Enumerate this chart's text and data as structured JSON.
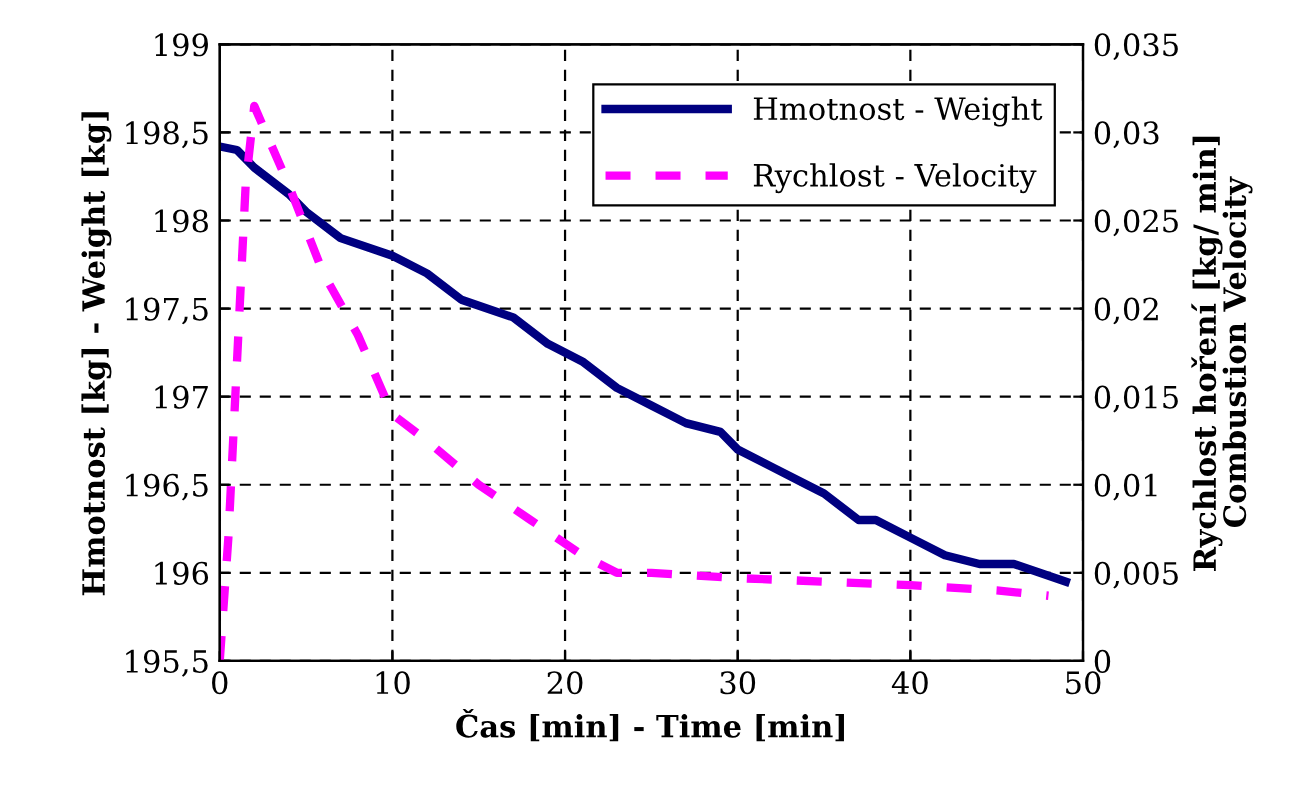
{
  "chart_data": {
    "type": "line",
    "xlabel": "Čas [min] - Time [min]",
    "ylabel": "Hmotnost [kg] - Weight [kg]",
    "y2label": "Rychlost hoření [kg/ min]\nCombustion Velocity",
    "xlim": [
      0,
      50
    ],
    "xticks": [
      0,
      10,
      20,
      30,
      40,
      50
    ],
    "ylim": [
      195.5,
      199
    ],
    "yticks": [
      {
        "value": 195.5,
        "label": "195,5"
      },
      196,
      {
        "value": 196.5,
        "label": "196,5"
      },
      197,
      {
        "value": 197.5,
        "label": "197,5"
      },
      198,
      {
        "value": 198.5,
        "label": "198,5"
      },
      199
    ],
    "y2lim": [
      0,
      0.035
    ],
    "y2ticks": [
      0,
      {
        "value": 0.005,
        "label": "0,005"
      },
      {
        "value": 0.01,
        "label": "0,01"
      },
      {
        "value": 0.015,
        "label": "0,015"
      },
      {
        "value": 0.02,
        "label": "0,02"
      },
      {
        "value": 0.025,
        "label": "0,025"
      },
      {
        "value": 0.03,
        "label": "0,03"
      },
      {
        "value": 0.035,
        "label": "0,035"
      }
    ],
    "grid": true,
    "legend": "top right",
    "series": [
      {
        "name": "Hmotnost - Weight",
        "color": "#000080",
        "line_style": "solid",
        "x": [
          0,
          1,
          2,
          4,
          5,
          7,
          10,
          12,
          14,
          17,
          19,
          21,
          23,
          25,
          27,
          29,
          30,
          32,
          34,
          35,
          37,
          38,
          40,
          42,
          44,
          46,
          49
        ],
        "values": [
          198.42,
          198.4,
          198.3,
          198.15,
          198.05,
          197.9,
          197.8,
          197.7,
          197.55,
          197.45,
          197.3,
          197.2,
          197.05,
          196.95,
          196.85,
          196.8,
          196.7,
          196.6,
          196.5,
          196.45,
          196.3,
          196.3,
          196.2,
          196.1,
          196.05,
          196.05,
          195.95
        ]
      },
      {
        "name": "Rychlost - Velocity",
        "color": "#ff00ff",
        "line_style": "dashed",
        "axis": "y2",
        "x": [
          0,
          0.5,
          1,
          1.5,
          2,
          4,
          6,
          8,
          10,
          12,
          15,
          18,
          21,
          23,
          25,
          30,
          35,
          40,
          45,
          48
        ],
        "values": [
          0,
          0.007,
          0.017,
          0.027,
          0.0315,
          0.027,
          0.022,
          0.0185,
          0.014,
          0.0125,
          0.01,
          0.008,
          0.006,
          0.005,
          0.005,
          0.0047,
          0.0045,
          0.0043,
          0.004,
          0.0037
        ]
      }
    ]
  }
}
